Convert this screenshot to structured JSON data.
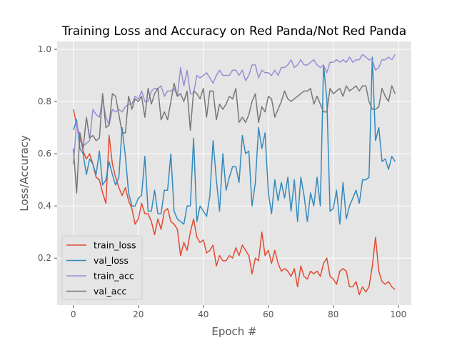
{
  "chart_data": {
    "type": "line",
    "title": "Training Loss and Accuracy on Red Panda/Not Red Panda",
    "xlabel": "Epoch #",
    "ylabel": "Loss/Accuracy",
    "xlim": [
      -5,
      104
    ],
    "ylim": [
      0.02,
      1.03
    ],
    "xticks": [
      0,
      20,
      40,
      60,
      80,
      100
    ],
    "yticks": [
      0.2,
      0.4,
      0.6,
      0.8,
      1.0
    ],
    "xtick_labels": [
      "0",
      "20",
      "40",
      "60",
      "80",
      "100"
    ],
    "ytick_labels": [
      "0.2",
      "0.4",
      "0.6",
      "0.8",
      "1.0"
    ],
    "grid": true,
    "style": "ggplot",
    "legend_position": "lower-left",
    "x": [
      0,
      1,
      2,
      3,
      4,
      5,
      6,
      7,
      8,
      9,
      10,
      11,
      12,
      13,
      14,
      15,
      16,
      17,
      18,
      19,
      20,
      21,
      22,
      23,
      24,
      25,
      26,
      27,
      28,
      29,
      30,
      31,
      32,
      33,
      34,
      35,
      36,
      37,
      38,
      39,
      40,
      41,
      42,
      43,
      44,
      45,
      46,
      47,
      48,
      49,
      50,
      51,
      52,
      53,
      54,
      55,
      56,
      57,
      58,
      59,
      60,
      61,
      62,
      63,
      64,
      65,
      66,
      67,
      68,
      69,
      70,
      71,
      72,
      73,
      74,
      75,
      76,
      77,
      78,
      79,
      80,
      81,
      82,
      83,
      84,
      85,
      86,
      87,
      88,
      89,
      90,
      91,
      92,
      93,
      94,
      95,
      96,
      97,
      98,
      99
    ],
    "series": [
      {
        "name": "train_loss",
        "color": "#E24A33",
        "values": [
          0.77,
          0.71,
          0.67,
          0.61,
          0.58,
          0.6,
          0.56,
          0.51,
          0.5,
          0.45,
          0.41,
          0.67,
          0.56,
          0.51,
          0.47,
          0.44,
          0.47,
          0.42,
          0.39,
          0.33,
          0.35,
          0.41,
          0.37,
          0.37,
          0.34,
          0.29,
          0.35,
          0.31,
          0.38,
          0.39,
          0.34,
          0.33,
          0.31,
          0.21,
          0.26,
          0.23,
          0.3,
          0.35,
          0.28,
          0.26,
          0.27,
          0.22,
          0.23,
          0.25,
          0.17,
          0.21,
          0.19,
          0.19,
          0.21,
          0.2,
          0.24,
          0.21,
          0.25,
          0.23,
          0.21,
          0.14,
          0.2,
          0.19,
          0.3,
          0.21,
          0.23,
          0.18,
          0.23,
          0.18,
          0.15,
          0.16,
          0.15,
          0.13,
          0.16,
          0.09,
          0.17,
          0.13,
          0.12,
          0.15,
          0.14,
          0.15,
          0.13,
          0.18,
          0.2,
          0.13,
          0.12,
          0.1,
          0.15,
          0.16,
          0.15,
          0.09,
          0.09,
          0.11,
          0.06,
          0.09,
          0.07,
          0.09,
          0.17,
          0.28,
          0.15,
          0.11,
          0.1,
          0.11,
          0.09,
          0.08
        ]
      },
      {
        "name": "val_loss",
        "color": "#348ABD",
        "values": [
          0.69,
          0.73,
          0.62,
          0.6,
          0.52,
          0.58,
          0.56,
          0.52,
          0.61,
          0.48,
          0.5,
          0.57,
          0.52,
          0.48,
          0.51,
          0.7,
          0.59,
          0.45,
          0.4,
          0.4,
          0.43,
          0.44,
          0.59,
          0.38,
          0.38,
          0.46,
          0.37,
          0.37,
          0.46,
          0.46,
          0.6,
          0.38,
          0.35,
          0.34,
          0.33,
          0.4,
          0.4,
          0.66,
          0.34,
          0.4,
          0.38,
          0.36,
          0.44,
          0.65,
          0.5,
          0.38,
          0.6,
          0.46,
          0.51,
          0.55,
          0.55,
          0.49,
          0.67,
          0.6,
          0.61,
          0.4,
          0.49,
          0.7,
          0.62,
          0.68,
          0.45,
          0.37,
          0.5,
          0.42,
          0.49,
          0.43,
          0.51,
          0.38,
          0.5,
          0.34,
          0.51,
          0.44,
          0.34,
          0.45,
          0.4,
          0.51,
          0.4,
          0.94,
          0.81,
          0.38,
          0.39,
          0.46,
          0.33,
          0.49,
          0.35,
          0.4,
          0.43,
          0.46,
          0.41,
          0.5,
          0.5,
          0.51,
          0.97,
          0.65,
          0.7,
          0.57,
          0.58,
          0.54,
          0.59,
          0.57
        ]
      },
      {
        "name": "train_acc",
        "color": "#988ED5",
        "values": [
          0.56,
          0.72,
          0.65,
          0.63,
          0.64,
          0.65,
          0.77,
          0.75,
          0.74,
          0.81,
          0.74,
          0.71,
          0.77,
          0.76,
          0.77,
          0.76,
          0.78,
          0.79,
          0.79,
          0.82,
          0.81,
          0.84,
          0.8,
          0.8,
          0.84,
          0.85,
          0.85,
          0.86,
          0.82,
          0.84,
          0.84,
          0.85,
          0.82,
          0.93,
          0.86,
          0.92,
          0.83,
          0.83,
          0.9,
          0.89,
          0.9,
          0.91,
          0.89,
          0.87,
          0.9,
          0.92,
          0.9,
          0.9,
          0.9,
          0.92,
          0.92,
          0.9,
          0.92,
          0.88,
          0.9,
          0.94,
          0.94,
          0.89,
          0.92,
          0.91,
          0.91,
          0.9,
          0.92,
          0.9,
          0.93,
          0.93,
          0.94,
          0.96,
          0.93,
          0.94,
          0.96,
          0.94,
          0.94,
          0.95,
          0.96,
          0.94,
          0.93,
          0.94,
          0.91,
          0.95,
          0.95,
          0.96,
          0.95,
          0.96,
          0.95,
          0.97,
          0.95,
          0.96,
          0.96,
          0.98,
          0.97,
          0.96,
          0.96,
          0.92,
          0.93,
          0.96,
          0.96,
          0.97,
          0.96,
          0.98
        ]
      },
      {
        "name": "val_acc",
        "color": "#777777",
        "values": [
          0.62,
          0.45,
          0.68,
          0.62,
          0.74,
          0.66,
          0.67,
          0.65,
          0.66,
          0.83,
          0.7,
          0.71,
          0.83,
          0.82,
          0.75,
          0.68,
          0.68,
          0.82,
          0.77,
          0.81,
          0.8,
          0.82,
          0.74,
          0.85,
          0.79,
          0.83,
          0.85,
          0.73,
          0.76,
          0.73,
          0.8,
          0.87,
          0.82,
          0.83,
          0.8,
          0.84,
          0.69,
          0.84,
          0.83,
          0.81,
          0.85,
          0.74,
          0.84,
          0.84,
          0.73,
          0.79,
          0.77,
          0.79,
          0.82,
          0.81,
          0.85,
          0.72,
          0.74,
          0.72,
          0.75,
          0.8,
          0.83,
          0.72,
          0.78,
          0.76,
          0.82,
          0.81,
          0.74,
          0.77,
          0.8,
          0.84,
          0.81,
          0.8,
          0.81,
          0.82,
          0.83,
          0.84,
          0.84,
          0.85,
          0.79,
          0.82,
          0.79,
          0.76,
          0.76,
          0.85,
          0.83,
          0.84,
          0.85,
          0.82,
          0.86,
          0.84,
          0.85,
          0.86,
          0.84,
          0.86,
          0.86,
          0.8,
          0.77,
          0.77,
          0.78,
          0.85,
          0.82,
          0.8,
          0.86,
          0.83
        ]
      }
    ]
  }
}
